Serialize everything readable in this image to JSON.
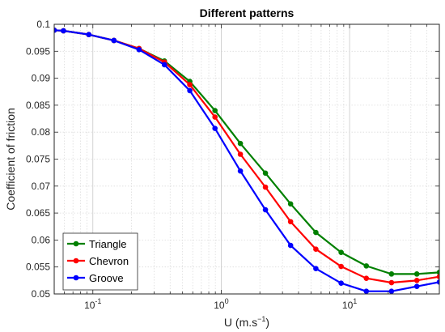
{
  "chart_data": {
    "type": "line",
    "title": "Different patterns",
    "xlabel_main": "U (m.s",
    "xlabel_sup": "−1",
    "xlabel_close": ")",
    "ylabel": "Coefficient of friction",
    "xscale": "log",
    "xlim": [
      0.05,
      50
    ],
    "ylim": [
      0.05,
      0.1
    ],
    "grid": true,
    "legend_position": "bottom-left",
    "x_ticks": [
      {
        "value": 0.1,
        "base": "10",
        "exp": "-1"
      },
      {
        "value": 1,
        "base": "10",
        "exp": "0"
      },
      {
        "value": 10,
        "base": "10",
        "exp": "1"
      }
    ],
    "y_ticks": [
      {
        "value": 0.05,
        "label": "0.05"
      },
      {
        "value": 0.055,
        "label": "0.055"
      },
      {
        "value": 0.06,
        "label": "0.06"
      },
      {
        "value": 0.065,
        "label": "0.065"
      },
      {
        "value": 0.07,
        "label": "0.07"
      },
      {
        "value": 0.075,
        "label": "0.075"
      },
      {
        "value": 0.08,
        "label": "0.08"
      },
      {
        "value": 0.085,
        "label": "0.085"
      },
      {
        "value": 0.09,
        "label": "0.09"
      },
      {
        "value": 0.095,
        "label": "0.095"
      },
      {
        "value": 0.1,
        "label": "0.1"
      }
    ],
    "x": [
      0.05,
      0.059,
      0.093,
      0.146,
      0.229,
      0.361,
      0.569,
      0.894,
      1.41,
      2.21,
      3.47,
      5.46,
      8.59,
      13.5,
      21.2,
      33.4,
      50
    ],
    "series": [
      {
        "name": "Triangle",
        "color": "#008000",
        "values": [
          0.0989,
          0.0988,
          0.0981,
          0.097,
          0.0955,
          0.0932,
          0.0894,
          0.084,
          0.0779,
          0.0724,
          0.0667,
          0.0614,
          0.0577,
          0.0552,
          0.0537,
          0.0537,
          0.054
        ]
      },
      {
        "name": "Chevron",
        "color": "#ff0000",
        "values": [
          0.0989,
          0.0988,
          0.0981,
          0.097,
          0.0955,
          0.093,
          0.0888,
          0.0828,
          0.0759,
          0.0698,
          0.0634,
          0.0583,
          0.0551,
          0.0529,
          0.0521,
          0.0525,
          0.0532
        ]
      },
      {
        "name": "Groove",
        "color": "#0000ff",
        "values": [
          0.0989,
          0.0988,
          0.0981,
          0.097,
          0.0953,
          0.0925,
          0.0877,
          0.0807,
          0.0728,
          0.0656,
          0.059,
          0.0547,
          0.052,
          0.0505,
          0.0505,
          0.0514,
          0.0522
        ]
      }
    ]
  }
}
